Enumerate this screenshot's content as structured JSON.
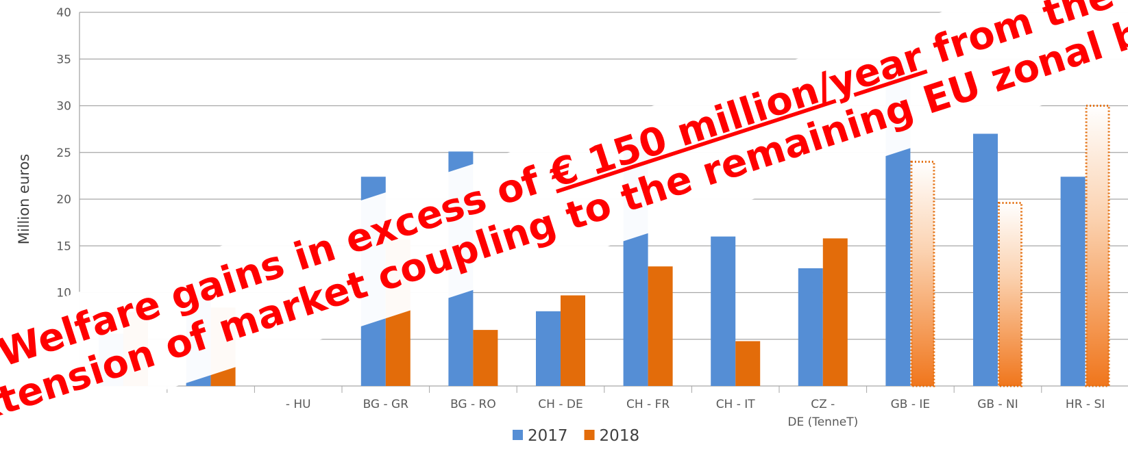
{
  "chart_data": {
    "type": "bar",
    "y_axis_label": "Million euros",
    "categories": [
      null,
      null,
      "- HU",
      "BG - GR",
      "BG - RO",
      "CH - DE",
      "CH - FR",
      "CH - IT",
      [
        "CZ -",
        "DE (TenneT)"
      ],
      "GB - IE",
      "GB - NI",
      "HR - SI"
    ],
    "series": [
      {
        "name": "2017",
        "color": "#558ed5",
        "values": [
          5.6,
          10.3,
          null,
          22.4,
          25.1,
          8,
          26.7,
          16,
          12.6,
          35.1,
          27,
          22.4
        ]
      },
      {
        "name": "2018",
        "color": "#e36c0a",
        "values": [
          7.9,
          8.4,
          null,
          15.7,
          6,
          9.7,
          12.8,
          4.8,
          15.8,
          24,
          19.6,
          30
        ],
        "dotted_indices": [
          9,
          10,
          11
        ]
      }
    ],
    "ylim": [
      0,
      40
    ],
    "yticks": [
      0,
      5,
      10,
      15,
      20,
      25,
      30,
      35,
      40
    ],
    "grid": true,
    "legend": "bottom",
    "annotation": {
      "line1_start": "Welfare gains in excess of ",
      "line1_underlined": "€ 150 million/year",
      "line1_end": " from the",
      "line2": "extension of market coupling to the remaining EU zonal borders"
    }
  }
}
